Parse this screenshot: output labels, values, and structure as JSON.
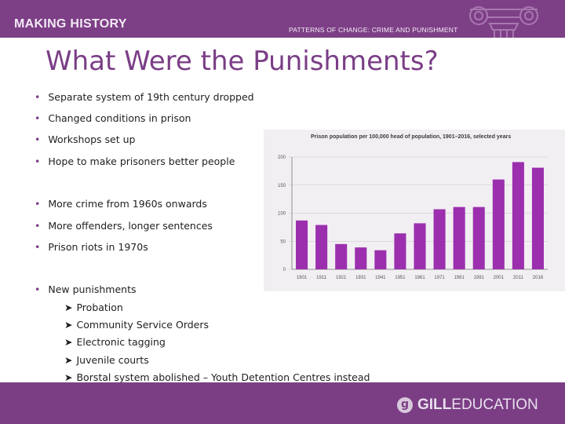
{
  "header": {
    "brand": "MAKING HISTORY",
    "subject": "PATTERNS OF CHANGE: CRIME AND PUNISHMENT"
  },
  "slide": {
    "title": "What Were the Punishments?",
    "bullets": [
      "Separate system of 19th century dropped",
      "Changed conditions in prison",
      "Workshops set up",
      "Hope to make prisoners better people",
      "More crime from 1960s onwards",
      "More offenders, longer sentences",
      "Prison riots in 1970s",
      "New punishments"
    ],
    "sub_bullets": [
      "Probation",
      "Community Service Orders",
      "Electronic tagging",
      "Juvenile courts",
      "Borstal system abolished – Youth Detention Centres instead"
    ]
  },
  "chart_data": {
    "type": "bar",
    "title": "Prison population per 100,000 head of population, 1901–2016, selected years",
    "categories": [
      "1901",
      "1911",
      "1921",
      "1931",
      "1941",
      "1951",
      "1961",
      "1971",
      "1981",
      "1991",
      "2001",
      "2011",
      "2016"
    ],
    "values": [
      87,
      79,
      45,
      39,
      34,
      64,
      82,
      107,
      111,
      111,
      160,
      191,
      181
    ],
    "ylim": [
      0,
      200
    ],
    "yticks": [
      "0",
      "50",
      "100",
      "150",
      "200"
    ],
    "grid": true,
    "color": "#9b2fae"
  },
  "footer": {
    "logo_mark": "g",
    "logo_bold": "GILL",
    "logo_rest": "EDUCATION"
  },
  "colors": {
    "brand_purple": "#7d3f86",
    "title_purple": "#7a3e86",
    "bar_purple": "#9b2fae"
  }
}
